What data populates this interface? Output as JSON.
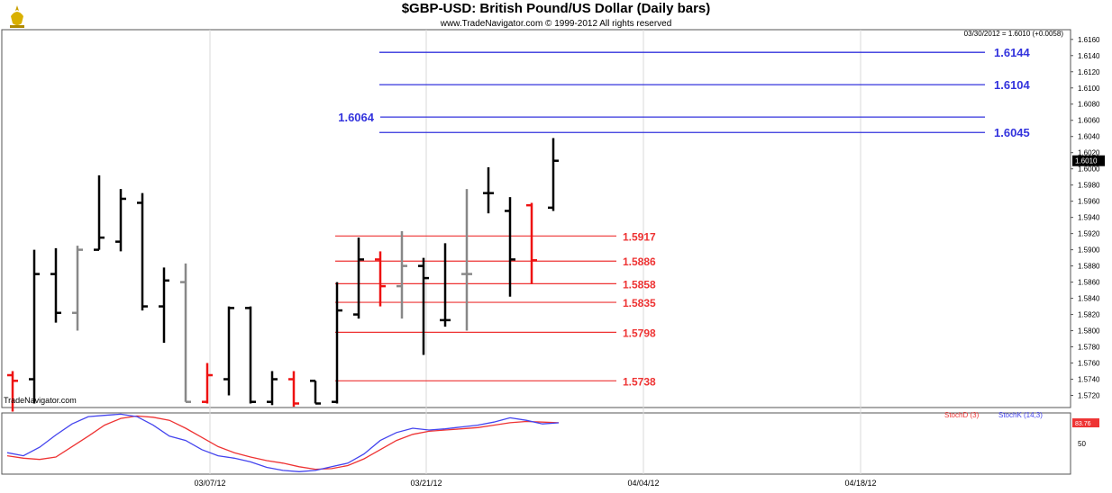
{
  "header": {
    "title": "$GBP-USD:  British Pound/US Dollar  (Daily bars)",
    "copyright": "www.TradeNavigator.com © 1999-2012 All rights reserved",
    "info_line": "03/30/2012 = 1.6010 (+0.0058)",
    "watermark": "TradeNavigator.com"
  },
  "colors": {
    "bull": "#000000",
    "bear": "#ee1111",
    "neutral": "#888888",
    "target_lines": "#3333dd",
    "support_lines": "#ee3333",
    "stoch_d": "#ee3333",
    "stoch_k": "#4444ee"
  },
  "chart_data": [
    {
      "type": "ohlc",
      "title": "$GBP-USD:  British Pound/US Dollar  (Daily bars)",
      "x_tick_labels": [
        "03/07/12",
        "03/21/12",
        "04/04/12",
        "04/18/12"
      ],
      "y_tick_labels": [
        "1.6160",
        "1.6140",
        "1.6120",
        "1.6100",
        "1.6080",
        "1.6060",
        "1.6040",
        "1.6020",
        "1.6000",
        "1.5980",
        "1.5960",
        "1.5940",
        "1.5920",
        "1.5900",
        "1.5880",
        "1.5860",
        "1.5840",
        "1.5820",
        "1.5800",
        "1.5780",
        "1.5760",
        "1.5740",
        "1.5720"
      ],
      "ylim": [
        1.5705,
        1.6172
      ],
      "last_price_label": "1.6010",
      "bars": [
        {
          "open": 1.5745,
          "high": 1.575,
          "low": 1.57,
          "close": 1.5738,
          "color": "bear"
        },
        {
          "open": 1.574,
          "high": 1.59,
          "low": 1.571,
          "close": 1.587,
          "color": "bull"
        },
        {
          "open": 1.587,
          "high": 1.5902,
          "low": 1.581,
          "close": 1.5822,
          "color": "bull"
        },
        {
          "open": 1.5822,
          "high": 1.5905,
          "low": 1.58,
          "close": 1.59,
          "color": "neutral"
        },
        {
          "open": 1.59,
          "high": 1.5992,
          "low": 1.59,
          "close": 1.5915,
          "color": "bull"
        },
        {
          "open": 1.591,
          "high": 1.5975,
          "low": 1.5898,
          "close": 1.5963,
          "color": "bull"
        },
        {
          "open": 1.5958,
          "high": 1.597,
          "low": 1.5825,
          "close": 1.583,
          "color": "bull"
        },
        {
          "open": 1.583,
          "high": 1.5878,
          "low": 1.5785,
          "close": 1.5862,
          "color": "bull"
        },
        {
          "open": 1.586,
          "high": 1.5883,
          "low": 1.5712,
          "close": 1.5712,
          "color": "neutral"
        },
        {
          "open": 1.5712,
          "high": 1.576,
          "low": 1.571,
          "close": 1.5745,
          "color": "bear"
        },
        {
          "open": 1.574,
          "high": 1.583,
          "low": 1.572,
          "close": 1.5828,
          "color": "bull"
        },
        {
          "open": 1.5828,
          "high": 1.583,
          "low": 1.571,
          "close": 1.5712,
          "color": "bull"
        },
        {
          "open": 1.5712,
          "high": 1.575,
          "low": 1.5708,
          "close": 1.574,
          "color": "bull"
        },
        {
          "open": 1.574,
          "high": 1.575,
          "low": 1.5706,
          "close": 1.571,
          "color": "bear"
        },
        {
          "open": 1.5738,
          "high": 1.5738,
          "low": 1.571,
          "close": 1.571,
          "color": "bull"
        },
        {
          "open": 1.5712,
          "high": 1.586,
          "low": 1.571,
          "close": 1.5825,
          "color": "bull"
        },
        {
          "open": 1.582,
          "high": 1.5915,
          "low": 1.5815,
          "close": 1.5888,
          "color": "bull"
        },
        {
          "open": 1.5888,
          "high": 1.5898,
          "low": 1.583,
          "close": 1.5855,
          "color": "bear"
        },
        {
          "open": 1.5855,
          "high": 1.5923,
          "low": 1.5815,
          "close": 1.588,
          "color": "neutral"
        },
        {
          "open": 1.588,
          "high": 1.589,
          "low": 1.577,
          "close": 1.5865,
          "color": "bull"
        },
        {
          "open": 1.5813,
          "high": 1.5908,
          "low": 1.5805,
          "close": 1.5813,
          "color": "bull"
        },
        {
          "open": 1.587,
          "high": 1.5975,
          "low": 1.58,
          "close": 1.587,
          "color": "neutral"
        },
        {
          "open": 1.597,
          "high": 1.6002,
          "low": 1.5945,
          "close": 1.597,
          "color": "bull"
        },
        {
          "open": 1.5948,
          "high": 1.5965,
          "low": 1.5842,
          "close": 1.5888,
          "color": "bull"
        },
        {
          "open": 1.5955,
          "high": 1.5958,
          "low": 1.5858,
          "close": 1.5887,
          "color": "bear"
        },
        {
          "open": 1.5952,
          "high": 1.6038,
          "low": 1.5948,
          "close": 1.601,
          "color": "bull"
        }
      ],
      "target_levels": [
        {
          "value": 1.6144,
          "label": "1.6144"
        },
        {
          "value": 1.6104,
          "label": "1.6104"
        },
        {
          "value": 1.6064,
          "label": "1.6064"
        },
        {
          "value": 1.6045,
          "label": "1.6045"
        }
      ],
      "support_levels": [
        {
          "value": 1.5917,
          "label": "1.5917"
        },
        {
          "value": 1.5886,
          "label": "1.5886"
        },
        {
          "value": 1.5858,
          "label": "1.5858"
        },
        {
          "value": 1.5835,
          "label": "1.5835"
        },
        {
          "value": 1.5798,
          "label": "1.5798"
        },
        {
          "value": 1.5738,
          "label": "1.5738"
        }
      ]
    },
    {
      "type": "line",
      "legend": [
        "StochD (3)",
        "StochK (14,3)"
      ],
      "y_tick_labels": [
        "50"
      ],
      "ylim": [
        0,
        100
      ],
      "last_value_label": "83.76",
      "series": [
        {
          "name": "StochD (3)",
          "values": [
            30,
            26,
            24,
            28,
            45,
            62,
            80,
            91,
            95,
            93,
            88,
            75,
            60,
            45,
            35,
            28,
            22,
            18,
            12,
            8,
            9,
            14,
            25,
            40,
            55,
            65,
            70,
            72,
            74,
            76,
            80,
            84,
            86,
            85,
            84
          ]
        },
        {
          "name": "StochK (14,3)",
          "values": [
            35,
            30,
            44,
            64,
            82,
            94,
            96,
            98,
            94,
            80,
            62,
            55,
            40,
            30,
            26,
            20,
            11,
            6,
            4,
            6,
            12,
            18,
            33,
            55,
            68,
            75,
            72,
            74,
            77,
            80,
            85,
            92,
            88,
            82,
            83.76
          ]
        }
      ]
    }
  ]
}
